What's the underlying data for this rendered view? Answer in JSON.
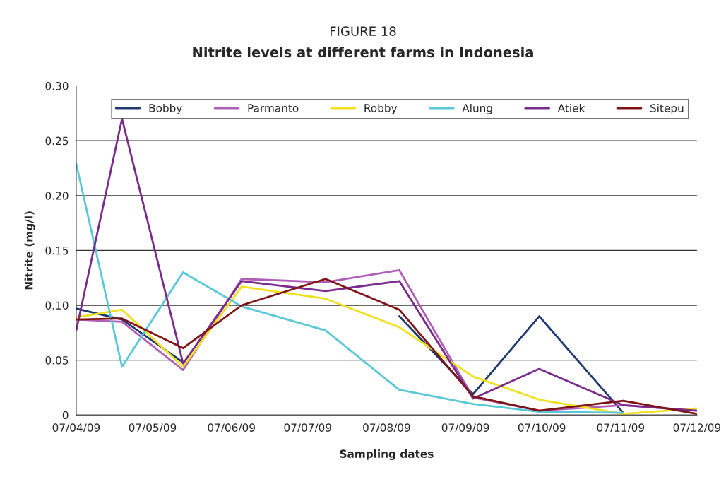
{
  "chart_data": {
    "type": "line",
    "title": "FIGURE 18",
    "subtitle": "Nitrite levels at different farms in Indonesia",
    "xlabel": "Sampling dates",
    "ylabel": "Nitrite (mg/l)",
    "x": [
      "2009-04-07",
      "2009-04-25",
      "2009-05-19",
      "2009-06-11",
      "2009-07-14",
      "2009-08-12",
      "2009-09-10",
      "2009-10-06",
      "2009-11-08",
      "2009-12-07"
    ],
    "series": [
      {
        "name": "Bobby",
        "color": "#1f3a6e",
        "values": [
          0.097,
          0.087,
          0.048,
          null,
          null,
          0.09,
          0.019,
          0.09,
          0.002,
          null
        ]
      },
      {
        "name": "Parmanto",
        "color": "#b05fb8",
        "values": [
          0.087,
          0.085,
          0.041,
          0.124,
          0.121,
          0.132,
          0.016,
          0.004,
          0.009,
          0.004
        ]
      },
      {
        "name": "Robby",
        "color": "#f0e020",
        "values": [
          0.089,
          0.096,
          0.044,
          0.117,
          0.106,
          0.08,
          0.035,
          0.014,
          0.001,
          0.006
        ]
      },
      {
        "name": "Alung",
        "color": "#5bc8d8",
        "values": [
          0.229,
          0.044,
          0.13,
          0.099,
          0.077,
          0.023,
          0.01,
          0.003,
          0.002,
          null
        ]
      },
      {
        "name": "Atiek",
        "color": "#7a2b8c",
        "values": [
          0.077,
          0.27,
          0.047,
          0.122,
          0.113,
          0.122,
          0.015,
          0.042,
          0.009,
          0.004
        ]
      },
      {
        "name": "Sitepu",
        "color": "#7f1416",
        "values": [
          0.087,
          0.088,
          0.061,
          0.1,
          0.124,
          0.096,
          0.017,
          0.004,
          0.013,
          0.001
        ]
      }
    ],
    "xlim": [
      "2009-04-07",
      "2009-12-07"
    ],
    "xticks": [
      {
        "value": "2009-04-07",
        "label": "07/04/09"
      },
      {
        "value": "2009-05-07",
        "label": "07/05/09"
      },
      {
        "value": "2009-06-07",
        "label": "07/06/09"
      },
      {
        "value": "2009-07-07",
        "label": "07/07/09"
      },
      {
        "value": "2009-08-07",
        "label": "07/08/09"
      },
      {
        "value": "2009-09-07",
        "label": "07/09/09"
      },
      {
        "value": "2009-10-07",
        "label": "07/10/09"
      },
      {
        "value": "2009-11-07",
        "label": "07/11/09"
      },
      {
        "value": "2009-12-07",
        "label": "07/12/09"
      }
    ],
    "ylim": [
      0,
      0.3
    ],
    "yticks": [
      0,
      0.05,
      {
        "value": 0.1,
        "label": "0.10"
      },
      0.15,
      {
        "value": 0.2,
        "label": "0.20"
      },
      0.25,
      {
        "value": 0.3,
        "label": "0.30"
      }
    ],
    "grid": "y",
    "legend": "top right",
    "marker": "none",
    "line_style": "solid"
  }
}
